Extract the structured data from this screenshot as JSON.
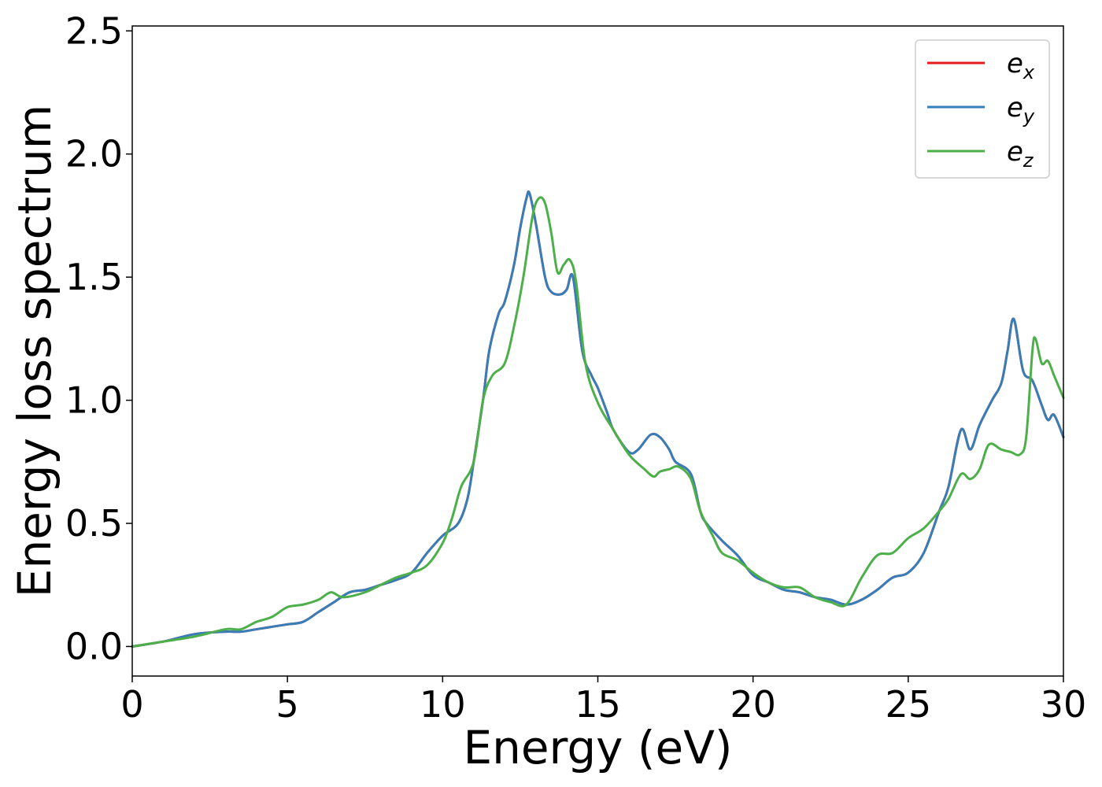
{
  "chart_data": {
    "type": "line",
    "xlabel": "Energy (eV)",
    "ylabel": "Energy loss spectrum",
    "xlim": [
      0,
      30
    ],
    "ylim": [
      -0.12,
      2.52
    ],
    "xticks": [
      0,
      5,
      10,
      15,
      20,
      25,
      30
    ],
    "yticks": [
      0.0,
      0.5,
      1.0,
      1.5,
      2.0,
      2.5
    ],
    "xtick_labels": [
      "0",
      "5",
      "10",
      "15",
      "20",
      "25",
      "30"
    ],
    "ytick_labels": [
      "0.0",
      "0.5",
      "1.0",
      "1.5",
      "2.0",
      "2.5"
    ],
    "grid": false,
    "legend_position": "top-right",
    "legend": [
      {
        "base": "e",
        "sub": "x",
        "color": "#e41a1c"
      },
      {
        "base": "e",
        "sub": "y",
        "color": "#377eb8"
      },
      {
        "base": "e",
        "sub": "z",
        "color": "#4daf4a"
      }
    ],
    "series": [
      {
        "color": "#e41a1c",
        "x": [
          0,
          1,
          2,
          3,
          3.5,
          4,
          4.5,
          5,
          5.5,
          6,
          6.5,
          7,
          7.5,
          8,
          8.5,
          9,
          9.5,
          10,
          10.5,
          10.8,
          11,
          11.3,
          11.5,
          11.8,
          12,
          12.3,
          12.5,
          12.7,
          12.8,
          13,
          13.3,
          13.5,
          13.8,
          14,
          14.2,
          14.5,
          14.8,
          15,
          15.3,
          15.5,
          16,
          16.3,
          16.7,
          17,
          17.3,
          17.5,
          18,
          18.3,
          18.5,
          19,
          19.5,
          20,
          20.5,
          21,
          21.5,
          22,
          22.5,
          23,
          23.5,
          24,
          24.5,
          25,
          25.5,
          26,
          26.3,
          26.7,
          27,
          27.3,
          27.7,
          28,
          28.2,
          28.4,
          28.7,
          29,
          29.3,
          29.5,
          29.7,
          30
        ],
        "y": [
          0.0,
          0.02,
          0.05,
          0.06,
          0.06,
          0.07,
          0.08,
          0.09,
          0.1,
          0.14,
          0.18,
          0.22,
          0.23,
          0.25,
          0.27,
          0.3,
          0.38,
          0.45,
          0.5,
          0.6,
          0.75,
          1.0,
          1.2,
          1.35,
          1.4,
          1.55,
          1.7,
          1.82,
          1.84,
          1.72,
          1.5,
          1.44,
          1.43,
          1.45,
          1.5,
          1.2,
          1.1,
          1.05,
          0.95,
          0.88,
          0.79,
          0.8,
          0.86,
          0.85,
          0.8,
          0.75,
          0.7,
          0.55,
          0.5,
          0.43,
          0.37,
          0.29,
          0.26,
          0.23,
          0.22,
          0.2,
          0.19,
          0.17,
          0.19,
          0.23,
          0.28,
          0.3,
          0.38,
          0.55,
          0.65,
          0.88,
          0.8,
          0.9,
          1.0,
          1.07,
          1.2,
          1.33,
          1.12,
          1.08,
          0.98,
          0.92,
          0.94,
          0.85
        ]
      },
      {
        "color": "#377eb8",
        "x": [
          0,
          1,
          2,
          3,
          3.5,
          4,
          4.5,
          5,
          5.5,
          6,
          6.5,
          7,
          7.5,
          8,
          8.5,
          9,
          9.5,
          10,
          10.5,
          10.8,
          11,
          11.3,
          11.5,
          11.8,
          12,
          12.3,
          12.5,
          12.7,
          12.8,
          13,
          13.3,
          13.5,
          13.8,
          14,
          14.2,
          14.5,
          14.8,
          15,
          15.3,
          15.5,
          16,
          16.3,
          16.7,
          17,
          17.3,
          17.5,
          18,
          18.3,
          18.5,
          19,
          19.5,
          20,
          20.5,
          21,
          21.5,
          22,
          22.5,
          23,
          23.5,
          24,
          24.5,
          25,
          25.5,
          26,
          26.3,
          26.7,
          27,
          27.3,
          27.7,
          28,
          28.2,
          28.4,
          28.7,
          29,
          29.3,
          29.5,
          29.7,
          30
        ],
        "y": [
          0.0,
          0.02,
          0.05,
          0.06,
          0.06,
          0.07,
          0.08,
          0.09,
          0.1,
          0.14,
          0.18,
          0.22,
          0.23,
          0.25,
          0.27,
          0.3,
          0.38,
          0.45,
          0.5,
          0.6,
          0.75,
          1.0,
          1.2,
          1.35,
          1.4,
          1.55,
          1.7,
          1.82,
          1.84,
          1.72,
          1.5,
          1.44,
          1.43,
          1.45,
          1.5,
          1.2,
          1.1,
          1.05,
          0.95,
          0.88,
          0.79,
          0.8,
          0.86,
          0.85,
          0.8,
          0.75,
          0.7,
          0.55,
          0.5,
          0.43,
          0.37,
          0.29,
          0.26,
          0.23,
          0.22,
          0.2,
          0.19,
          0.17,
          0.19,
          0.23,
          0.28,
          0.3,
          0.38,
          0.55,
          0.65,
          0.88,
          0.8,
          0.9,
          1.0,
          1.07,
          1.2,
          1.33,
          1.12,
          1.08,
          0.98,
          0.92,
          0.94,
          0.85
        ]
      },
      {
        "color": "#4daf4a",
        "x": [
          0,
          1,
          2,
          3,
          3.5,
          4,
          4.5,
          5,
          5.5,
          6,
          6.4,
          6.8,
          7.5,
          8,
          8.5,
          9,
          9.5,
          10,
          10.3,
          10.6,
          11,
          11.3,
          11.6,
          12,
          12.3,
          12.6,
          12.9,
          13.1,
          13.3,
          13.5,
          13.7,
          13.9,
          14.1,
          14.3,
          14.6,
          15,
          15.5,
          16,
          16.5,
          16.8,
          17,
          17.3,
          17.6,
          18,
          18.3,
          18.7,
          19,
          19.5,
          20,
          20.5,
          21,
          21.5,
          22,
          22.5,
          23,
          23.5,
          24,
          24.5,
          25,
          25.5,
          26,
          26.3,
          26.7,
          27,
          27.3,
          27.6,
          28,
          28.3,
          28.6,
          28.8,
          29,
          29.1,
          29.3,
          29.5,
          29.7,
          30
        ],
        "y": [
          0.0,
          0.02,
          0.04,
          0.07,
          0.07,
          0.1,
          0.12,
          0.16,
          0.17,
          0.19,
          0.22,
          0.2,
          0.22,
          0.25,
          0.28,
          0.3,
          0.33,
          0.42,
          0.52,
          0.65,
          0.75,
          1.0,
          1.1,
          1.15,
          1.3,
          1.5,
          1.75,
          1.82,
          1.8,
          1.68,
          1.52,
          1.55,
          1.57,
          1.48,
          1.15,
          0.99,
          0.88,
          0.78,
          0.72,
          0.69,
          0.71,
          0.72,
          0.73,
          0.68,
          0.55,
          0.45,
          0.38,
          0.35,
          0.3,
          0.26,
          0.24,
          0.24,
          0.2,
          0.18,
          0.17,
          0.28,
          0.37,
          0.38,
          0.44,
          0.48,
          0.55,
          0.6,
          0.7,
          0.68,
          0.72,
          0.82,
          0.8,
          0.79,
          0.78,
          0.85,
          1.2,
          1.25,
          1.15,
          1.16,
          1.1,
          1.01
        ]
      }
    ]
  }
}
